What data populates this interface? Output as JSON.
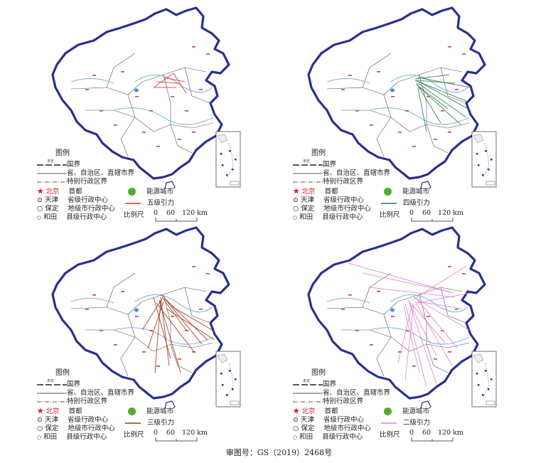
{
  "legend": {
    "title": "图例",
    "undetermined_label": "未定",
    "national_border": "国界",
    "provincial_border": "省、自治区、直辖市界",
    "special_admin_border": "特别行政区界",
    "capital_city": "北京",
    "capital_label": "首都",
    "provincial_city": "天津",
    "provincial_label": "省级行政中心",
    "prefecture_city": "保定",
    "prefecture_label": "地级市行政中心",
    "county_city": "和田",
    "county_label": "县级行政中心",
    "energy_city_label": "能源城市",
    "scale_label": "比例尺",
    "scale_ticks": [
      "0",
      "60",
      "120 km"
    ]
  },
  "panels": [
    {
      "gravity_label": "五级引力",
      "line_color": "#e03030"
    },
    {
      "gravity_label": "四级引力",
      "line_color": "#2e7d4f"
    },
    {
      "gravity_label": "三级引力",
      "line_color": "#9c3a22"
    },
    {
      "gravity_label": "二级引力",
      "line_color": "#d98ad4"
    }
  ],
  "colors": {
    "border_blue": "#2a2f8f",
    "energy_green": "#4caf2f",
    "capital_red": "#e0202a"
  },
  "footer": "审图号：GS（2019）2468号"
}
